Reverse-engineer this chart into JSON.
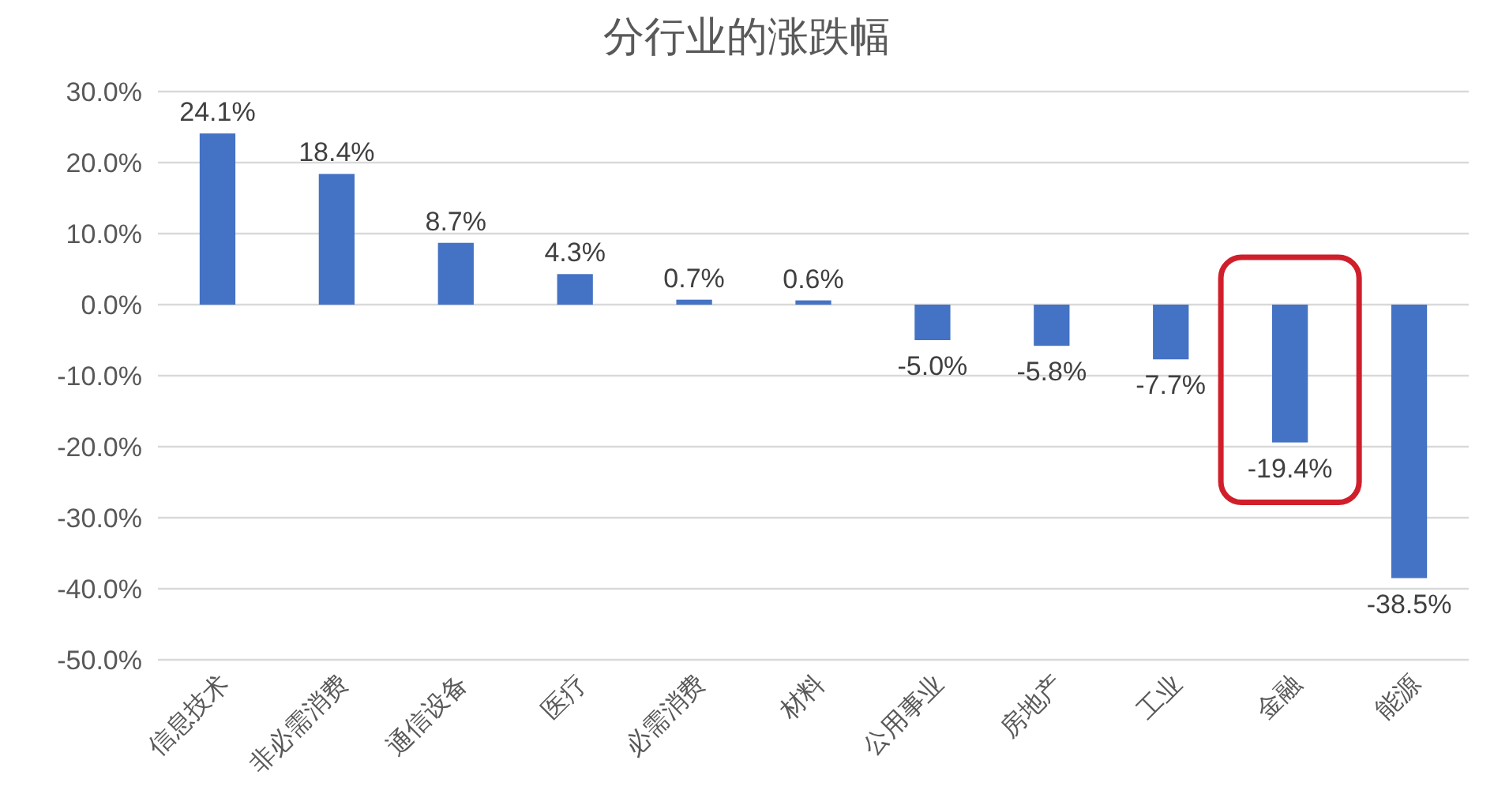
{
  "chart_data": {
    "type": "bar",
    "title": "分行业的涨跌幅",
    "categories": [
      "信息技术",
      "非必需消费",
      "通信设备",
      "医疗",
      "必需消费",
      "材料",
      "公用事业",
      "房地产",
      "工业",
      "金融",
      "能源"
    ],
    "values": [
      24.1,
      18.4,
      8.7,
      4.3,
      0.7,
      0.6,
      -5.0,
      -5.8,
      -7.7,
      -19.4,
      -38.5
    ],
    "value_labels": [
      "24.1%",
      "18.4%",
      "8.7%",
      "4.3%",
      "0.7%",
      "0.6%",
      "-5.0%",
      "-5.8%",
      "-7.7%",
      "-19.4%",
      "-38.5%"
    ],
    "color": "#4472c4",
    "ylim": [
      -50,
      30
    ],
    "yticks": [
      {
        "value": 30,
        "label": "30.0%"
      },
      {
        "value": 20,
        "label": "20.0%"
      },
      {
        "value": 10,
        "label": "10.0%"
      },
      {
        "value": 0,
        "label": "0.0%"
      },
      {
        "value": -10,
        "label": "-10.0%"
      },
      {
        "value": -20,
        "label": "-20.0%"
      },
      {
        "value": -30,
        "label": "-30.0%"
      },
      {
        "value": -40,
        "label": "-40.0%"
      },
      {
        "value": -50,
        "label": "-50.0%"
      }
    ],
    "grid": "y"
  }
}
